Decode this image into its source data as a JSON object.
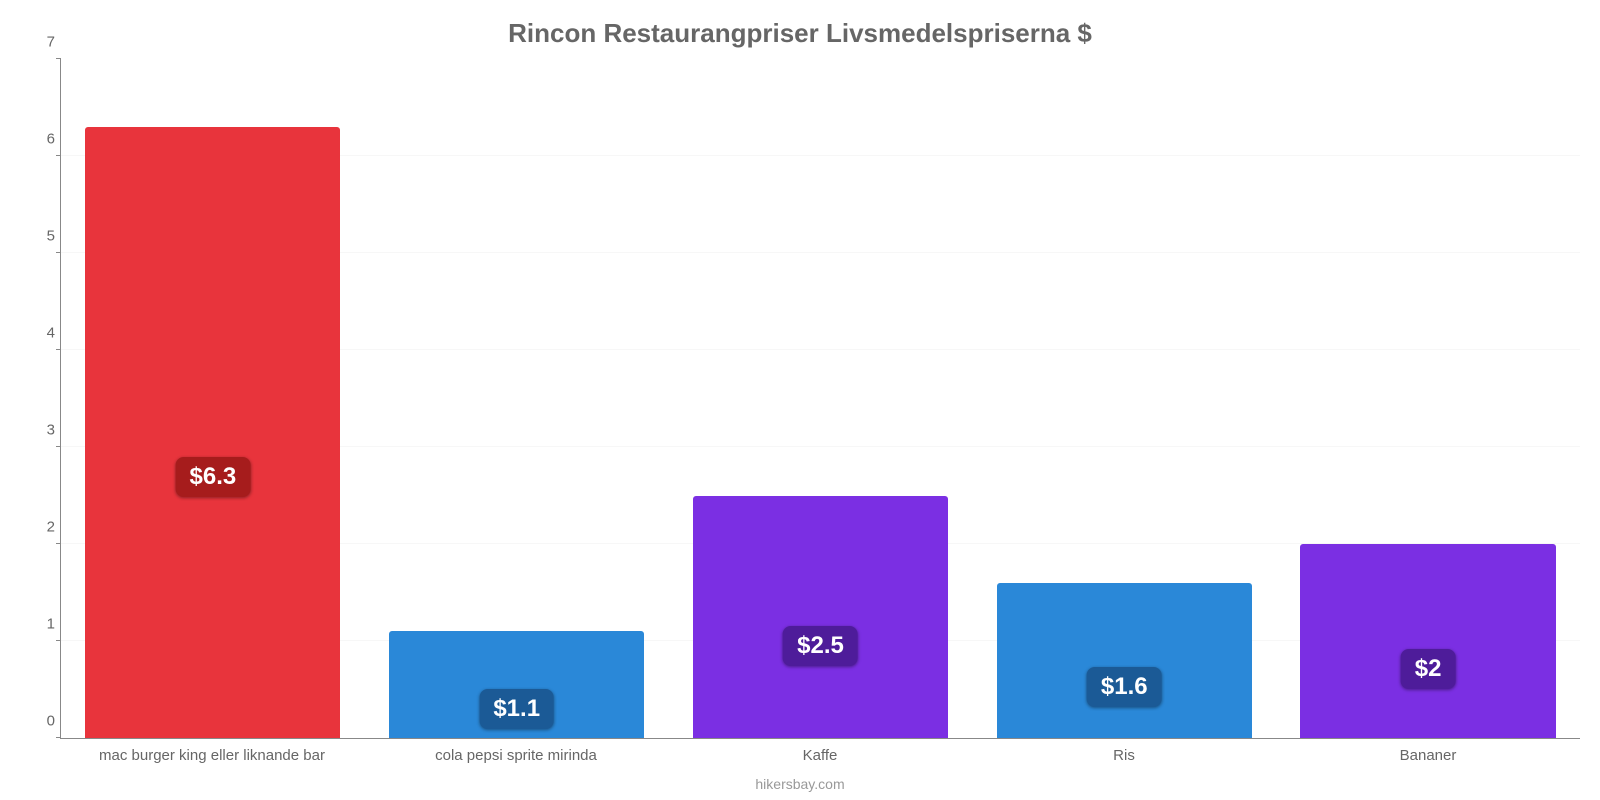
{
  "chart": {
    "type": "bar",
    "title": "Rincon Restaurangpriser Livsmedelspriserna $",
    "title_color": "#666666",
    "title_fontsize": 26,
    "subtitle": "hikersbay.com",
    "subtitle_color": "#999999",
    "subtitle_fontsize": 14,
    "background_color": "#ffffff",
    "grid_color": "#f7f7f7",
    "axis_color": "#888888",
    "tick_label_color": "#666666",
    "tick_label_fontsize": 15,
    "value_label_fontsize": 24,
    "value_label_text_color": "#ffffff",
    "ylim": [
      0,
      7
    ],
    "ytick_step": 1,
    "bar_width_ratio": 0.84,
    "categories": [
      "mac burger king eller liknande bar",
      "cola pepsi sprite mirinda",
      "Kaffe",
      "Ris",
      "Bananer"
    ],
    "values": [
      6.3,
      1.1,
      2.5,
      1.6,
      2.0
    ],
    "value_labels": [
      "$6.3",
      "$1.1",
      "$2.5",
      "$1.6",
      "$2"
    ],
    "bar_colors": [
      "#e8343c",
      "#2a88d8",
      "#7b2fe3",
      "#2a88d8",
      "#7b2fe3"
    ],
    "badge_colors": [
      "#a61c1c",
      "#1b5a96",
      "#4e1c9a",
      "#1b5a96",
      "#4e1c9a"
    ]
  }
}
